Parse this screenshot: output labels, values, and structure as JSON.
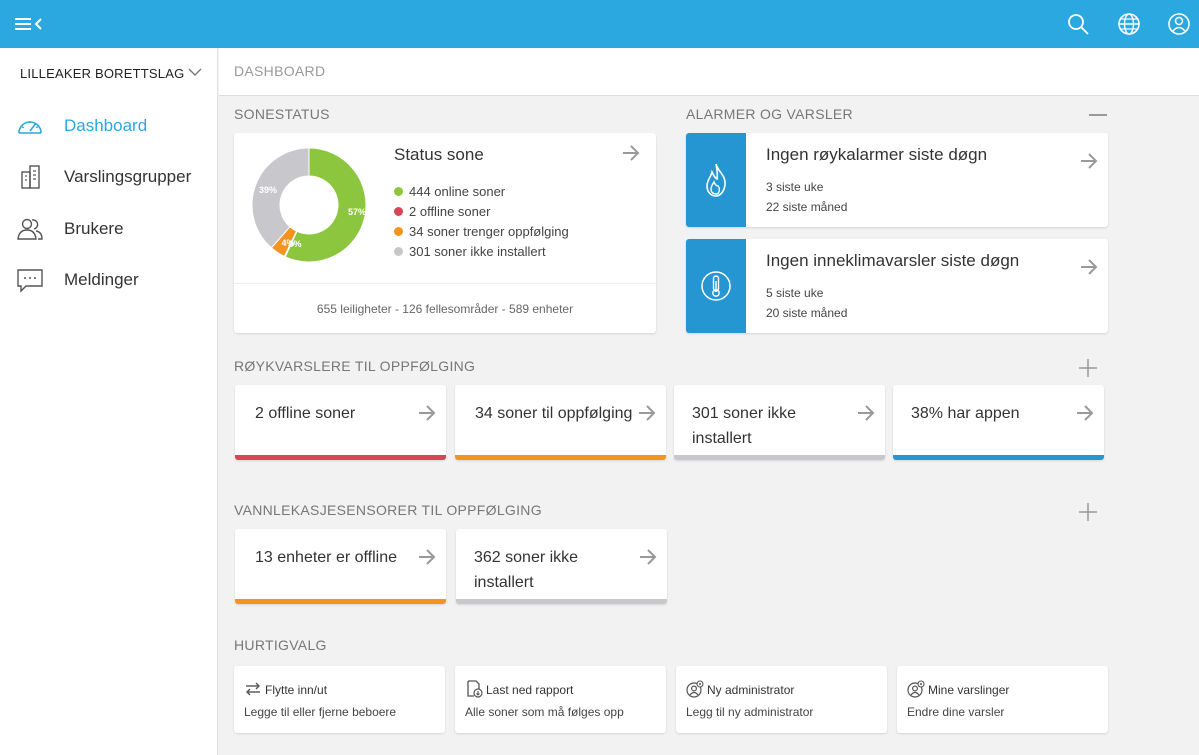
{
  "colors": {
    "topbar": "#2aa8df",
    "accent": "#2aa8df",
    "online": "#8cc63e",
    "offline": "#d84554",
    "followup": "#f39422",
    "not_installed": "#c8c8cc",
    "app": "#2596d1"
  },
  "topbar": {
    "icons": [
      "menu-collapse-icon",
      "search-icon",
      "globe-icon",
      "user-icon"
    ]
  },
  "sidebar": {
    "org_name": "LILLEAKER BORETTSLAG",
    "items": [
      {
        "label": "Dashboard",
        "icon": "speedometer-icon",
        "active": true
      },
      {
        "label": "Varslingsgrupper",
        "icon": "building-icon",
        "active": false
      },
      {
        "label": "Brukere",
        "icon": "users-icon",
        "active": false
      },
      {
        "label": "Meldinger",
        "icon": "chat-icon",
        "active": false
      }
    ]
  },
  "header": {
    "title": "DASHBOARD"
  },
  "sonestatus": {
    "section_title": "SONESTATUS",
    "card_title": "Status sone",
    "legend": [
      {
        "label": "444 online soner",
        "color": "#8cc63e"
      },
      {
        "label": "2 offline soner",
        "color": "#d84554"
      },
      {
        "label": "34 soner trenger oppfølging",
        "color": "#f39422"
      },
      {
        "label": "301 soner ikke installert",
        "color": "#c8c8cc"
      }
    ],
    "donut_labels": {
      "online": "57%",
      "followup": "4%",
      "offline": "0%",
      "not_installed": "39%"
    },
    "footer": "655 leiligheter - 126 fellesområder - 589 enheter"
  },
  "chart_data": {
    "type": "pie",
    "categories": [
      "online",
      "offline",
      "trenger oppfølging",
      "ikke installert"
    ],
    "values": [
      444,
      2,
      34,
      301
    ],
    "title": "Status sone",
    "legend_placement": "right"
  },
  "alarms": {
    "section_title": "ALARMER OG VARSLER",
    "cards": [
      {
        "title": "Ingen røykalarmer siste døgn",
        "line1": "3 siste uke",
        "line2": "22 siste måned",
        "icon": "flame-icon"
      },
      {
        "title": "Ingen inneklimavarsler siste døgn",
        "line1": "5 siste uke",
        "line2": "20 siste måned",
        "icon": "thermometer-icon"
      }
    ]
  },
  "smoke": {
    "section_title": "RØYKVARSLERE TIL OPPFØLGING",
    "cards": [
      {
        "label": "2 offline soner",
        "color": "#d84554"
      },
      {
        "label": "34 soner til oppfølging",
        "color": "#f39422"
      },
      {
        "label": "301 soner ikke installert",
        "color": "#c8c8cc"
      },
      {
        "label": "38% har appen",
        "color": "#2596d1"
      }
    ]
  },
  "water": {
    "section_title": "VANNLEKASJESENSORER TIL OPPFØLGING",
    "cards": [
      {
        "label": "13 enheter er offline",
        "color": "#f39422"
      },
      {
        "label": "362 soner ikke installert",
        "color": "#c8c8cc"
      }
    ]
  },
  "quick": {
    "section_title": "HURTIGVALG",
    "items": [
      {
        "title": "Flytte inn/ut",
        "sub": "Legge til eller fjerne beboere",
        "icon": "swap-arrows-icon"
      },
      {
        "title": "Last ned rapport",
        "sub": "Alle soner som må følges opp",
        "icon": "report-download-icon"
      },
      {
        "title": "Ny administrator",
        "sub": "Legg til ny administrator",
        "icon": "admin-user-icon"
      },
      {
        "title": "Mine varslinger",
        "sub": "Endre dine varsler",
        "icon": "user-settings-icon"
      }
    ]
  }
}
